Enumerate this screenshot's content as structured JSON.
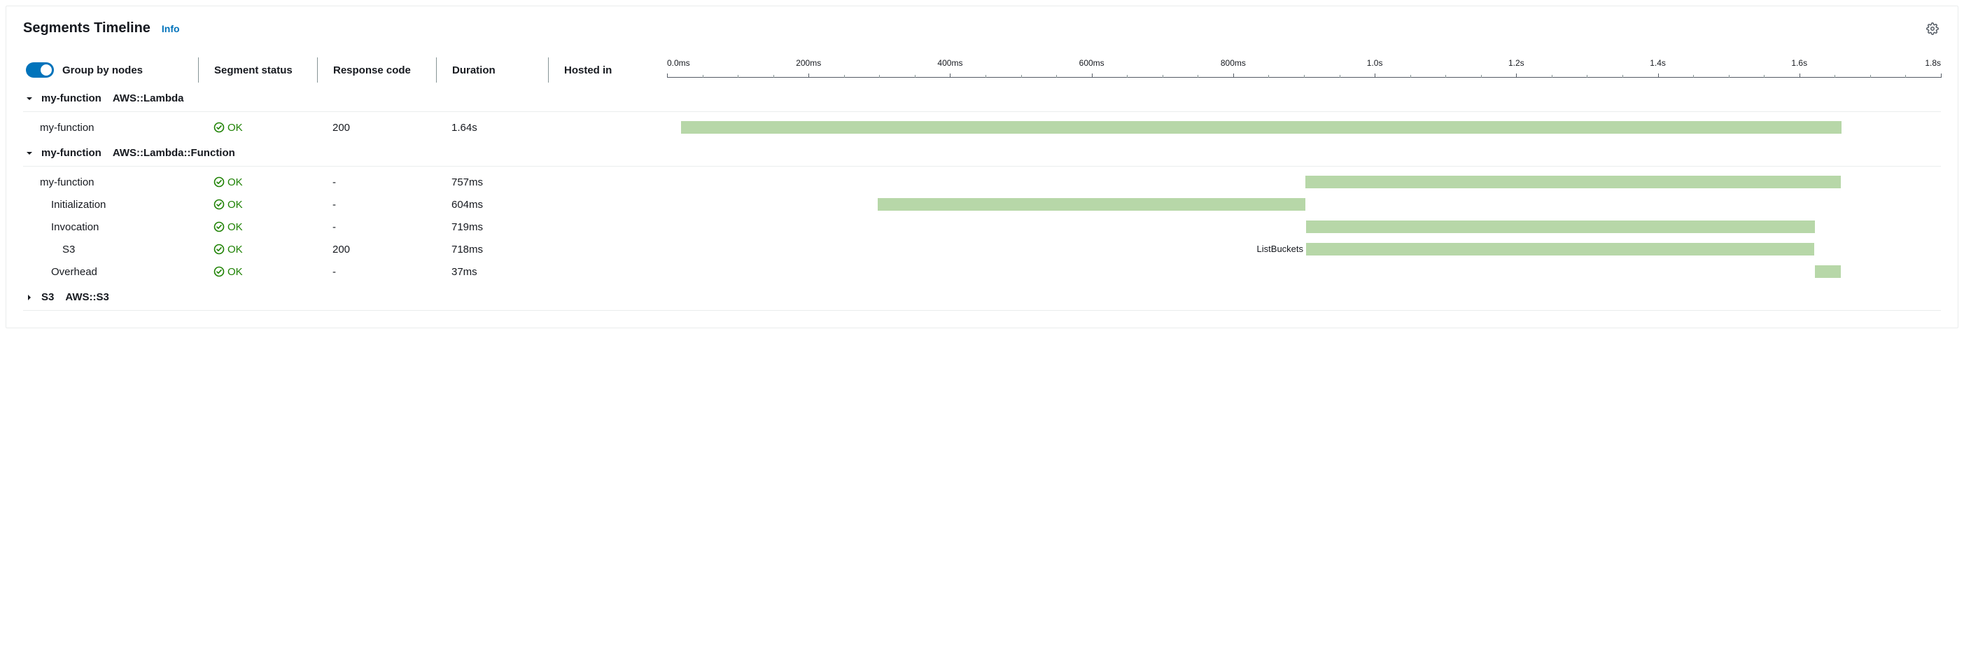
{
  "header": {
    "title": "Segments Timeline",
    "info_label": "Info"
  },
  "controls": {
    "group_by_nodes_label": "Group by nodes",
    "group_by_nodes_on": true
  },
  "columns": {
    "status": "Segment status",
    "response": "Response code",
    "duration": "Duration",
    "hosted": "Hosted in"
  },
  "timeline": {
    "min_ms": 0,
    "max_ms": 1800,
    "major_step_ms": 200,
    "minor_per_major": 4,
    "labels": [
      "0.0ms",
      "200ms",
      "400ms",
      "600ms",
      "800ms",
      "1.0s",
      "1.2s",
      "1.4s",
      "1.6s",
      "1.8s"
    ],
    "bar_color": "#b7d7a8"
  },
  "groups": [
    {
      "expanded": true,
      "name": "my-function",
      "type": "AWS::Lambda",
      "rows": [
        {
          "name": "my-function",
          "indent": 0,
          "status": "OK",
          "response": "200",
          "duration": "1.64s",
          "bar_start_ms": 20,
          "bar_end_ms": 1660,
          "bar_label": ""
        }
      ]
    },
    {
      "expanded": true,
      "name": "my-function",
      "type": "AWS::Lambda::Function",
      "rows": [
        {
          "name": "my-function",
          "indent": 0,
          "status": "OK",
          "response": "-",
          "duration": "757ms",
          "bar_start_ms": 902,
          "bar_end_ms": 1659,
          "bar_label": ""
        },
        {
          "name": "Initialization",
          "indent": 1,
          "status": "OK",
          "response": "-",
          "duration": "604ms",
          "bar_start_ms": 298,
          "bar_end_ms": 902,
          "bar_label": ""
        },
        {
          "name": "Invocation",
          "indent": 1,
          "status": "OK",
          "response": "-",
          "duration": "719ms",
          "bar_start_ms": 903,
          "bar_end_ms": 1622,
          "bar_label": ""
        },
        {
          "name": "S3",
          "indent": 2,
          "status": "OK",
          "response": "200",
          "duration": "718ms",
          "bar_start_ms": 903,
          "bar_end_ms": 1621,
          "bar_label": "ListBuckets"
        },
        {
          "name": "Overhead",
          "indent": 1,
          "status": "OK",
          "response": "-",
          "duration": "37ms",
          "bar_start_ms": 1622,
          "bar_end_ms": 1659,
          "bar_label": ""
        }
      ]
    },
    {
      "expanded": false,
      "name": "S3",
      "type": "AWS::S3",
      "rows": []
    }
  ]
}
